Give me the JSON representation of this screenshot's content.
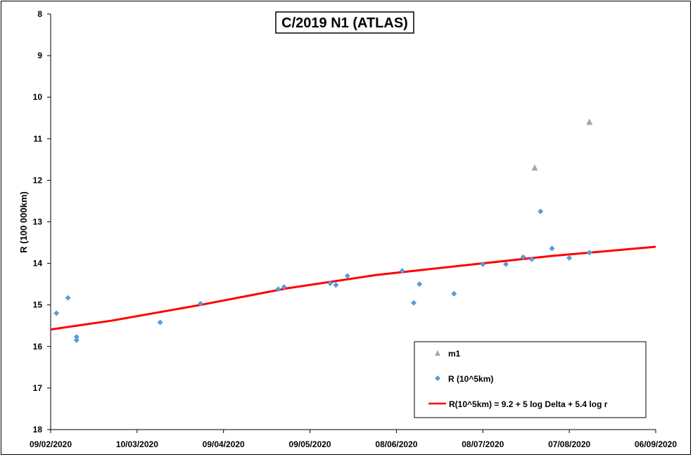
{
  "chart_data": {
    "type": "scatter",
    "title": "C/2019 N1 (ATLAS)",
    "xlabel": "",
    "ylabel": "R (100 000km)",
    "x_type": "date",
    "xlim": [
      "2020-02-09",
      "2020-09-06"
    ],
    "x_ticks": [
      "09/02/2020",
      "10/03/2020",
      "09/04/2020",
      "09/05/2020",
      "08/06/2020",
      "08/07/2020",
      "07/08/2020",
      "06/09/2020"
    ],
    "ylim": [
      8,
      18
    ],
    "y_reversed": true,
    "y_ticks": [
      "8",
      "9",
      "10",
      "11",
      "12",
      "13",
      "14",
      "15",
      "16",
      "17",
      "18"
    ],
    "grid": false,
    "legend_position": "bottom-right",
    "series": [
      {
        "name": "m1",
        "marker": "triangle",
        "color": "#a6a6a6",
        "points": [
          {
            "x": "2020-07-26",
            "y": 11.7
          },
          {
            "x": "2020-08-14",
            "y": 10.6
          }
        ]
      },
      {
        "name": "R (10^5km)",
        "marker": "diamond",
        "color": "#5b9bd5",
        "points": [
          {
            "x": "2020-02-11",
            "y": 15.2
          },
          {
            "x": "2020-02-15",
            "y": 14.83
          },
          {
            "x": "2020-02-18",
            "y": 15.77
          },
          {
            "x": "2020-02-18",
            "y": 15.85
          },
          {
            "x": "2020-03-18",
            "y": 15.42
          },
          {
            "x": "2020-04-01",
            "y": 14.97
          },
          {
            "x": "2020-04-28",
            "y": 14.62
          },
          {
            "x": "2020-04-30",
            "y": 14.57
          },
          {
            "x": "2020-05-16",
            "y": 14.48
          },
          {
            "x": "2020-05-18",
            "y": 14.52
          },
          {
            "x": "2020-05-22",
            "y": 14.3
          },
          {
            "x": "2020-06-10",
            "y": 14.18
          },
          {
            "x": "2020-06-14",
            "y": 14.95
          },
          {
            "x": "2020-06-16",
            "y": 14.5
          },
          {
            "x": "2020-06-28",
            "y": 14.73
          },
          {
            "x": "2020-07-08",
            "y": 14.02
          },
          {
            "x": "2020-07-16",
            "y": 14.02
          },
          {
            "x": "2020-07-22",
            "y": 13.85
          },
          {
            "x": "2020-07-25",
            "y": 13.9
          },
          {
            "x": "2020-07-28",
            "y": 12.75
          },
          {
            "x": "2020-08-01",
            "y": 13.64
          },
          {
            "x": "2020-08-07",
            "y": 13.87
          },
          {
            "x": "2020-08-14",
            "y": 13.74
          }
        ]
      },
      {
        "name": "R(10^5km) = 9.2 + 5 log Delta + 5.4 log r",
        "type": "line",
        "color": "#ff0000",
        "points": [
          {
            "x": "2020-02-01",
            "y": 15.67
          },
          {
            "x": "2020-03-01",
            "y": 15.38
          },
          {
            "x": "2020-04-01",
            "y": 15.0
          },
          {
            "x": "2020-05-01",
            "y": 14.6
          },
          {
            "x": "2020-06-01",
            "y": 14.28
          },
          {
            "x": "2020-07-01",
            "y": 14.05
          },
          {
            "x": "2020-08-01",
            "y": 13.82
          },
          {
            "x": "2020-09-06",
            "y": 13.6
          }
        ]
      }
    ]
  }
}
